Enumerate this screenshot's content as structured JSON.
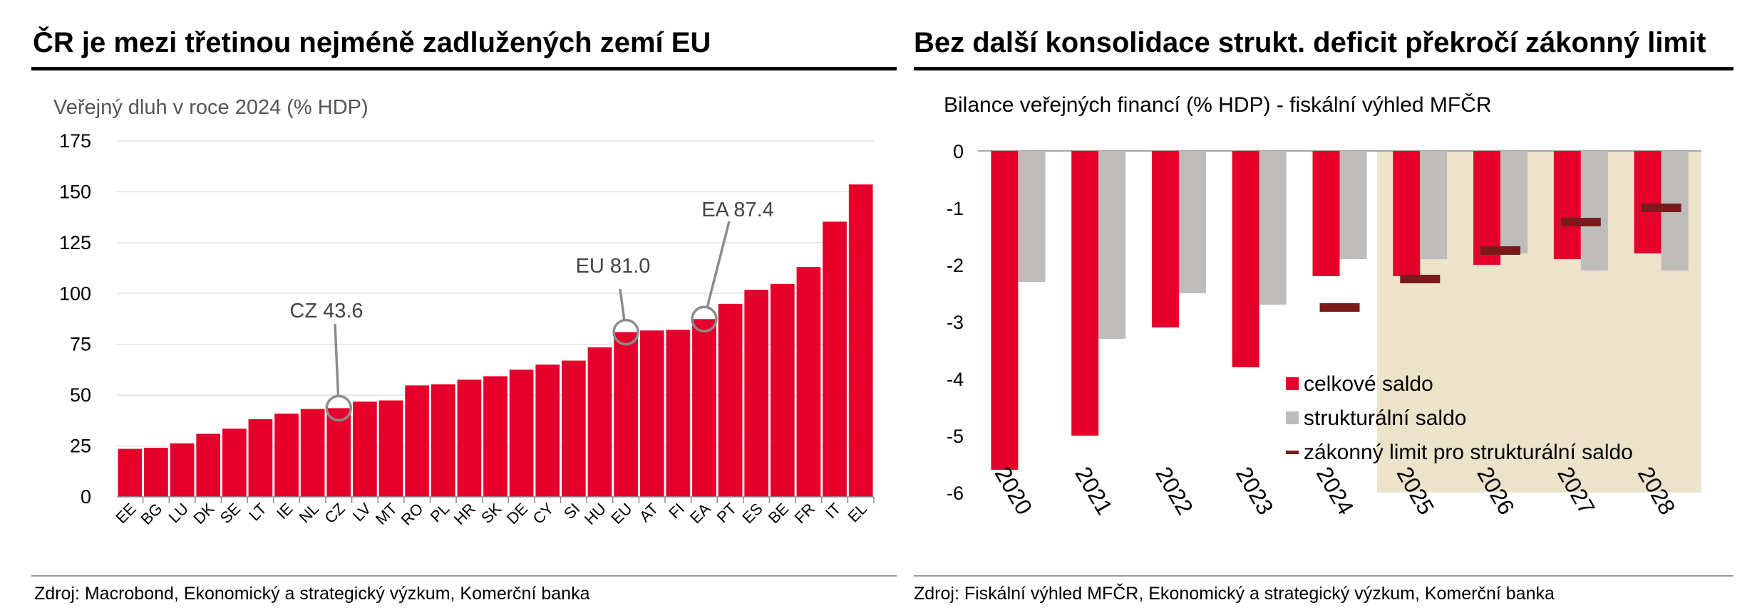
{
  "left": {
    "title": "ČR je mezi třetinou nejméně zadlužených zemí EU",
    "source": "Zdroj: Macrobond, Ekonomický a strategický výzkum, Komerční banka",
    "chart_data": {
      "type": "bar",
      "title": "Veřejný dluh v roce 2024 (% HDP)",
      "categories": [
        "EE",
        "BG",
        "LU",
        "DK",
        "SE",
        "LT",
        "IE",
        "NL",
        "CZ",
        "LV",
        "MT",
        "RO",
        "PL",
        "HR",
        "SK",
        "DE",
        "CY",
        "SI",
        "HU",
        "EU",
        "AT",
        "FI",
        "EA",
        "PT",
        "ES",
        "BE",
        "FR",
        "IT",
        "EL"
      ],
      "values": [
        23.6,
        24.1,
        26.3,
        31.0,
        33.5,
        38.2,
        40.9,
        43.2,
        43.6,
        46.8,
        47.4,
        54.8,
        55.3,
        57.6,
        59.3,
        62.5,
        65.0,
        67.0,
        73.5,
        81.0,
        81.8,
        82.1,
        87.4,
        94.9,
        101.8,
        104.7,
        113.0,
        135.3,
        153.6
      ],
      "ylim": [
        0,
        175
      ],
      "yticks": [
        0,
        25,
        50,
        75,
        100,
        125,
        150,
        175
      ],
      "bar_color": "#e4002b",
      "grid": true,
      "annotations": [
        {
          "category": "CZ",
          "label": "CZ 43.6",
          "value": 43.6
        },
        {
          "category": "EU",
          "label": "EU 81.0",
          "value": 81.0
        },
        {
          "category": "EA",
          "label": "EA 87.4",
          "value": 87.4
        }
      ]
    }
  },
  "right": {
    "title": "Bez další konsolidace strukt. deficit překročí zákonný limit",
    "source": "Zdroj: Fiskální výhled MFČR, Ekonomický a strategický výzkum, Komerční banka",
    "chart_data": {
      "type": "bar",
      "title": "Bilance veřejných financí (% HDP) - fiskální výhled MFČR",
      "categories": [
        "2020",
        "2021",
        "2022",
        "2023",
        "2024",
        "2025",
        "2026",
        "2027",
        "2028"
      ],
      "series": [
        {
          "name": "celkové saldo",
          "color": "#e4002b",
          "values": [
            -5.6,
            -5.0,
            -3.1,
            -3.8,
            -2.2,
            -2.2,
            -2.0,
            -1.9,
            -1.8
          ]
        },
        {
          "name": "strukturální saldo",
          "color": "#bfbcbc",
          "values": [
            -2.3,
            -3.3,
            -2.5,
            -2.7,
            -1.9,
            -1.9,
            -1.8,
            -2.1,
            -2.1
          ]
        },
        {
          "name": "zákonný limit pro strukturální saldo",
          "color": "#7b1a1a",
          "values": [
            null,
            null,
            null,
            null,
            -2.75,
            -2.25,
            -1.75,
            -1.25,
            -1.0
          ]
        }
      ],
      "ylim": [
        -6,
        0
      ],
      "yticks": [
        0,
        -1,
        -2,
        -3,
        -4,
        -5,
        -6
      ],
      "shaded_from": "2025",
      "shade_color": "#ede3cb",
      "legend_position": "bottom-right"
    }
  }
}
